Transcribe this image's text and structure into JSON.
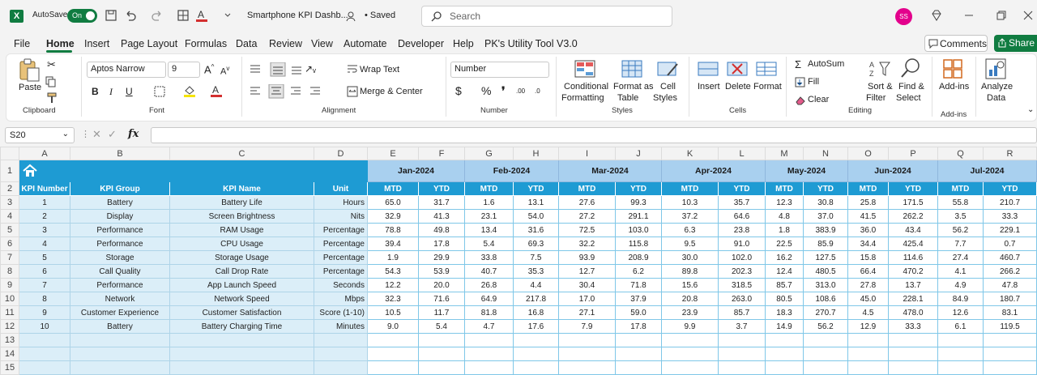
{
  "titlebar": {
    "autosave_label": "AutoSave",
    "autosave_state": "On",
    "doc_title": "Smartphone KPI Dashb...",
    "saved": "• Saved",
    "search_placeholder": "Search",
    "avatar": "SS",
    "accent": "#107c41"
  },
  "menu": {
    "items": [
      "File",
      "Home",
      "Insert",
      "Page Layout",
      "Formulas",
      "Data",
      "Review",
      "View",
      "Automate",
      "Developer",
      "Help",
      "PK's Utility Tool V3.0"
    ],
    "active": "Home",
    "comments": "Comments",
    "share": "Share"
  },
  "ribbon": {
    "clipboard": {
      "paste": "Paste",
      "label": "Clipboard"
    },
    "font": {
      "name": "Aptos Narrow",
      "size": "9",
      "label": "Font"
    },
    "alignment": {
      "wrap": "Wrap Text",
      "merge": "Merge & Center",
      "label": "Alignment"
    },
    "number": {
      "format": "Number",
      "label": "Number"
    },
    "styles": {
      "conditional": "Conditional",
      "conditional2": "Formatting",
      "format_as": "Format as",
      "format_as2": "Table",
      "cell": "Cell",
      "cell2": "Styles",
      "label": "Styles"
    },
    "cells": {
      "insert": "Insert",
      "delete": "Delete",
      "format": "Format",
      "label": "Cells"
    },
    "editing": {
      "autosum": "AutoSum",
      "fill": "Fill",
      "clear": "Clear",
      "sort": "Sort &",
      "sort2": "Filter",
      "find": "Find &",
      "find2": "Select",
      "label": "Editing"
    },
    "addins": {
      "addins": "Add-ins",
      "label": "Add-ins"
    },
    "analyze": {
      "label1": "Analyze",
      "label2": "Data"
    }
  },
  "formula_bar": {
    "name_box": "S20",
    "fx": "fx",
    "formula": ""
  },
  "sheet": {
    "columns": [
      "A",
      "B",
      "C",
      "D",
      "E",
      "F",
      "G",
      "H",
      "I",
      "J",
      "K",
      "L",
      "M",
      "N",
      "O",
      "P",
      "Q",
      "R"
    ],
    "row_numbers": [
      "1",
      "2",
      "3",
      "4",
      "5",
      "6",
      "7",
      "8",
      "9",
      "10",
      "11",
      "12",
      "13",
      "14",
      "15"
    ],
    "months": [
      "Jan-2024",
      "Feb-2024",
      "Mar-2024",
      "Apr-2024",
      "May-2024",
      "Jun-2024",
      "Jul-2024"
    ],
    "headers": {
      "number": "KPI Number",
      "group": "KPI Group",
      "name": "KPI Name",
      "unit": "Unit",
      "mtd": "MTD",
      "ytd": "YTD"
    },
    "header_color": "#1e9bd3",
    "month_color": "#a9d0ef",
    "rows": [
      {
        "num": "1",
        "group": "Battery",
        "name": "Battery Life",
        "unit": "Hours",
        "vals": [
          "65.0",
          "31.7",
          "1.6",
          "13.1",
          "27.6",
          "99.3",
          "10.3",
          "35.7",
          "12.3",
          "30.8",
          "25.8",
          "171.5",
          "55.8",
          "210.7"
        ]
      },
      {
        "num": "2",
        "group": "Display",
        "name": "Screen Brightness",
        "unit": "Nits",
        "vals": [
          "32.9",
          "41.3",
          "23.1",
          "54.0",
          "27.2",
          "291.1",
          "37.2",
          "64.6",
          "4.8",
          "37.0",
          "41.5",
          "262.2",
          "3.5",
          "33.3"
        ]
      },
      {
        "num": "3",
        "group": "Performance",
        "name": "RAM Usage",
        "unit": "Percentage",
        "vals": [
          "78.8",
          "49.8",
          "13.4",
          "31.6",
          "72.5",
          "103.0",
          "6.3",
          "23.8",
          "1.8",
          "383.9",
          "36.0",
          "43.4",
          "56.2",
          "229.1"
        ]
      },
      {
        "num": "4",
        "group": "Performance",
        "name": "CPU Usage",
        "unit": "Percentage",
        "vals": [
          "39.4",
          "17.8",
          "5.4",
          "69.3",
          "32.2",
          "115.8",
          "9.5",
          "91.0",
          "22.5",
          "85.9",
          "34.4",
          "425.4",
          "7.7",
          "0.7"
        ]
      },
      {
        "num": "5",
        "group": "Storage",
        "name": "Storage Usage",
        "unit": "Percentage",
        "vals": [
          "1.9",
          "29.9",
          "33.8",
          "7.5",
          "93.9",
          "208.9",
          "30.0",
          "102.0",
          "16.2",
          "127.5",
          "15.8",
          "114.6",
          "27.4",
          "460.7"
        ]
      },
      {
        "num": "6",
        "group": "Call Quality",
        "name": "Call Drop Rate",
        "unit": "Percentage",
        "vals": [
          "54.3",
          "53.9",
          "40.7",
          "35.3",
          "12.7",
          "6.2",
          "89.8",
          "202.3",
          "12.4",
          "480.5",
          "66.4",
          "470.2",
          "4.1",
          "266.2"
        ]
      },
      {
        "num": "7",
        "group": "Performance",
        "name": "App Launch Speed",
        "unit": "Seconds",
        "vals": [
          "12.2",
          "20.0",
          "26.8",
          "4.4",
          "30.4",
          "71.8",
          "15.6",
          "318.5",
          "85.7",
          "313.0",
          "27.8",
          "13.7",
          "4.9",
          "47.8"
        ]
      },
      {
        "num": "8",
        "group": "Network",
        "name": "Network Speed",
        "unit": "Mbps",
        "vals": [
          "32.3",
          "71.6",
          "64.9",
          "217.8",
          "17.0",
          "37.9",
          "20.8",
          "263.0",
          "80.5",
          "108.6",
          "45.0",
          "228.1",
          "84.9",
          "180.7"
        ]
      },
      {
        "num": "9",
        "group": "Customer Experience",
        "name": "Customer Satisfaction",
        "unit": "Score (1-10)",
        "vals": [
          "10.5",
          "11.7",
          "81.8",
          "16.8",
          "27.1",
          "59.0",
          "23.9",
          "85.7",
          "18.3",
          "270.7",
          "4.5",
          "478.0",
          "12.6",
          "83.1"
        ]
      },
      {
        "num": "10",
        "group": "Battery",
        "name": "Battery Charging Time",
        "unit": "Minutes",
        "vals": [
          "9.0",
          "5.4",
          "4.7",
          "17.6",
          "7.9",
          "17.8",
          "9.9",
          "3.7",
          "14.9",
          "56.2",
          "12.9",
          "33.3",
          "6.1",
          "119.5"
        ]
      }
    ]
  }
}
